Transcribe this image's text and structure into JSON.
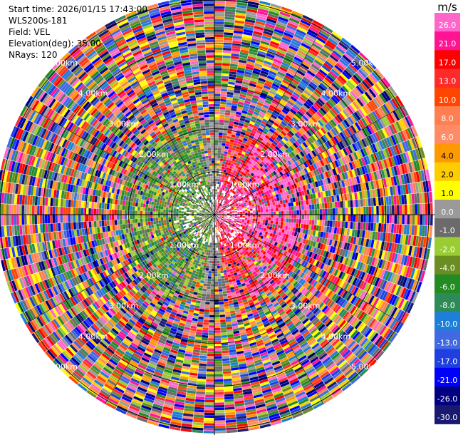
{
  "header": {
    "start_time": "Start time: 2026/01/15 17:43:00",
    "instrument": "WLS200s-181",
    "field": "Field: VEL",
    "elevation": "Elevation(deg): 35.00",
    "nrays": "NRays: 120"
  },
  "chart_data": {
    "type": "heatmap",
    "projection": "polar-ppi",
    "field": "VEL",
    "units": "m/s",
    "elevation_deg": 35.0,
    "n_rays": 120,
    "range_rings_km": [
      1.0,
      2.0,
      3.0,
      4.0,
      5.0
    ],
    "range_ring_labels": [
      "1.00km",
      "2.00km",
      "3.00km",
      "4.00km",
      "5.00km"
    ],
    "max_range_km": 5.1,
    "clim": [
      -30,
      30
    ],
    "colorbar": {
      "label": "m/s",
      "ticks": [
        "26.0",
        "21.0",
        "17.0",
        "13.0",
        "10.0",
        "8.0",
        "6.0",
        "4.0",
        "2.0",
        "1.0",
        "0.0",
        "-1.0",
        "-2.0",
        "-4.0",
        "-6.0",
        "-8.0",
        "-10.0",
        "-13.0",
        "-17.0",
        "-21.0",
        "-26.0",
        "-30.0"
      ],
      "colors": [
        "#ff66cc",
        "#ff1493",
        "#ff0000",
        "#ff2a2a",
        "#ff4500",
        "#ff7f50",
        "#ff8c66",
        "#ff9900",
        "#ffcc00",
        "#ffff00",
        "#9a9a9a",
        "#6b6b6b",
        "#9acd32",
        "#6b8e23",
        "#228b22",
        "#2e8b57",
        "#1e7fd8",
        "#4169e1",
        "#1f3fe0",
        "#0000ff",
        "#000080",
        "#191970"
      ]
    },
    "pattern": "Near-range coherent wind: approaching (green/blue, negative) to the west, receding (yellow/orange/red, positive) to the east; beyond ~2 km the field becomes noise-dominated with random colors across the full scale."
  }
}
